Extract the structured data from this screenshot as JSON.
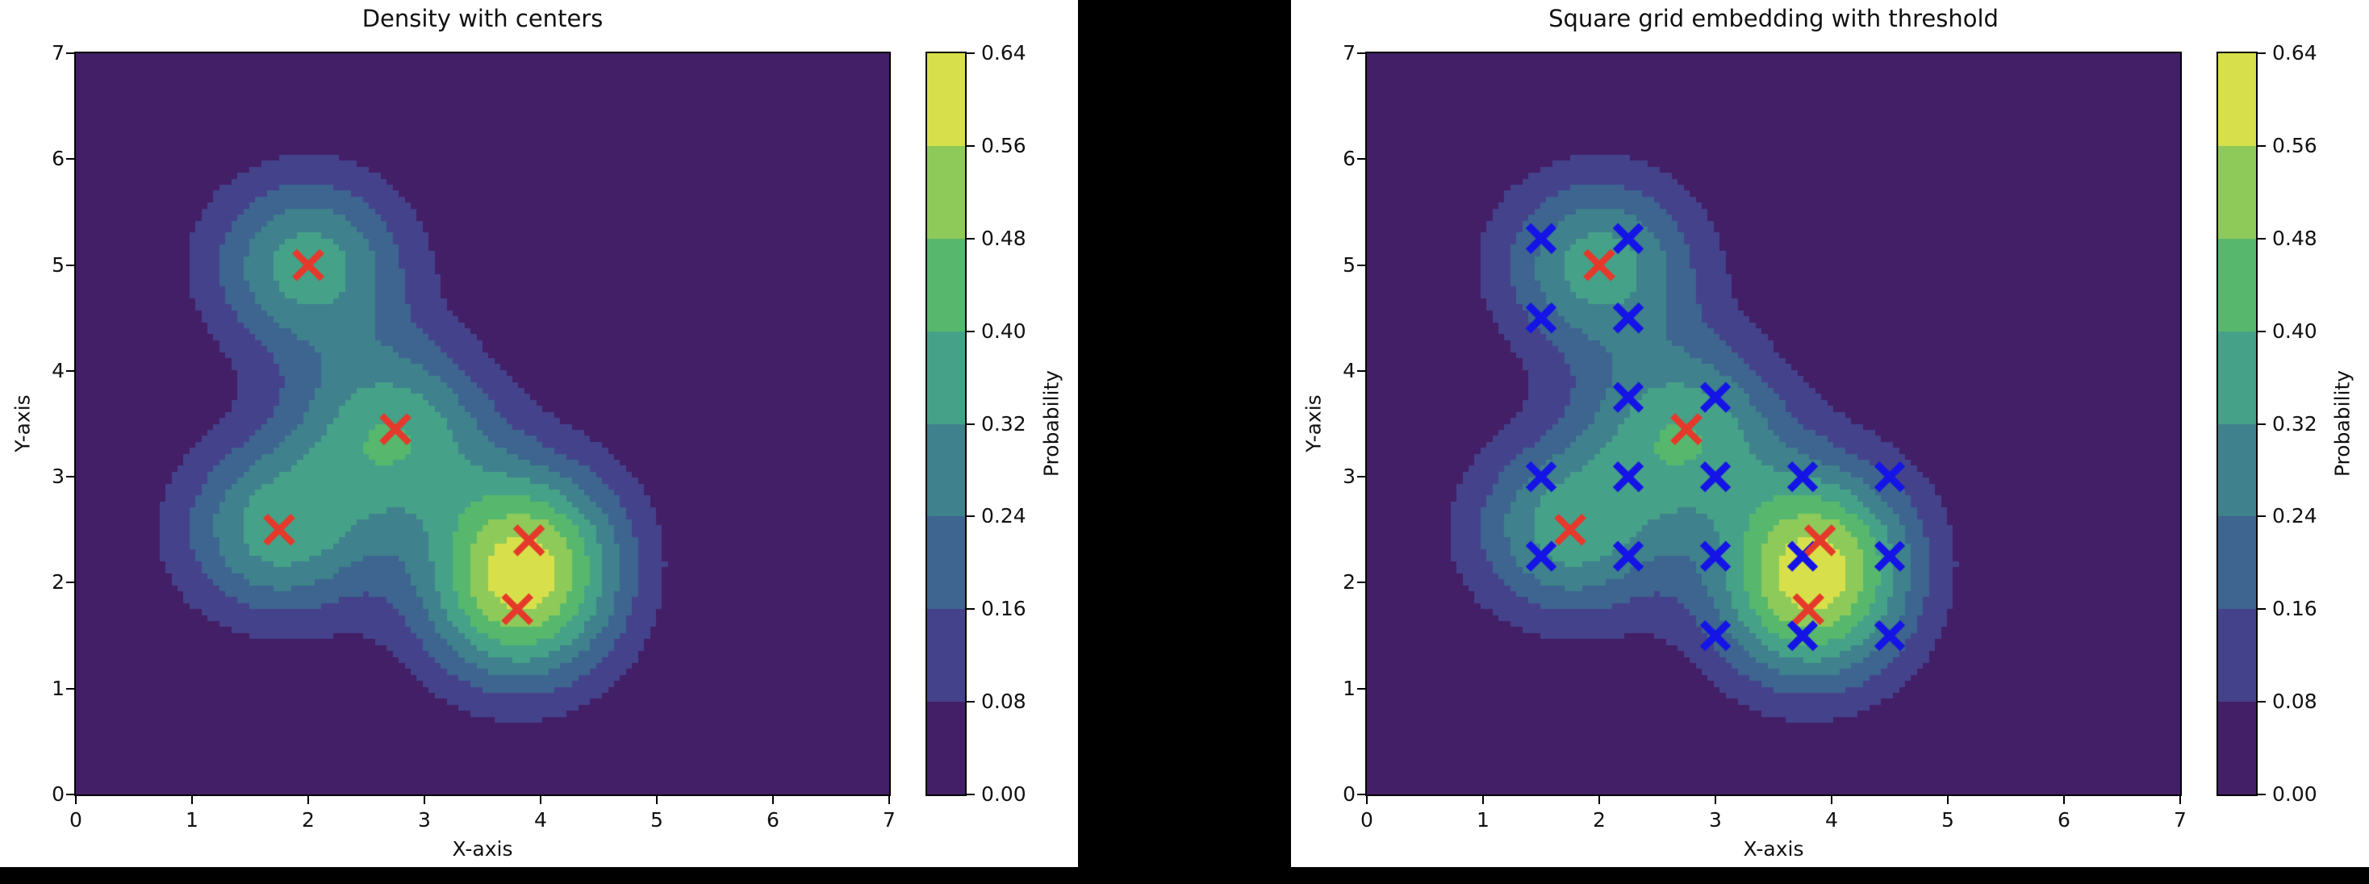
{
  "page": {
    "background": "#000000",
    "panel_background": "#ffffff",
    "text_color": "#111111"
  },
  "chart_data": [
    {
      "type": "contour",
      "title": "Density with centers",
      "xlabel": "X-axis",
      "ylabel": "Y-axis",
      "xlim": [
        0,
        7
      ],
      "ylim": [
        0,
        7
      ],
      "x_tick_labels": [
        "0",
        "1",
        "2",
        "3",
        "4",
        "5",
        "6",
        "7"
      ],
      "y_tick_labels": [
        "0",
        "1",
        "2",
        "3",
        "4",
        "5",
        "6",
        "7"
      ],
      "grid": false,
      "legend": "none",
      "levels": [
        0.0,
        0.08,
        0.16,
        0.24,
        0.32,
        0.4,
        0.48,
        0.56,
        0.64
      ],
      "colorbar": {
        "label": "Probability",
        "tick_labels": [
          "0.00",
          "0.08",
          "0.16",
          "0.24",
          "0.32",
          "0.40",
          "0.48",
          "0.56",
          "0.64"
        ],
        "band_colors": [
          "#421f66",
          "#45428c",
          "#3d6590",
          "#3f818c",
          "#46a189",
          "#57b86d",
          "#8eca59",
          "#d7e04a"
        ]
      },
      "density": {
        "kernel": "gaussian_mixture",
        "sigma": 0.6,
        "component_weight": 0.36,
        "centers": [
          [
            2.0,
            5.0
          ],
          [
            2.75,
            3.45
          ],
          [
            1.75,
            2.5
          ],
          [
            3.9,
            2.4
          ],
          [
            3.8,
            1.75
          ]
        ]
      },
      "markers": [
        {
          "name": "centers",
          "symbol": "x",
          "color": "#e5392b",
          "size": 34,
          "stroke": 8,
          "points": [
            [
              2.0,
              5.0
            ],
            [
              2.75,
              3.45
            ],
            [
              1.75,
              2.5
            ],
            [
              3.9,
              2.4
            ],
            [
              3.8,
              1.75
            ]
          ]
        }
      ]
    },
    {
      "type": "contour",
      "title": "Square grid embedding with threshold",
      "xlabel": "X-axis",
      "ylabel": "Y-axis",
      "xlim": [
        0,
        7
      ],
      "ylim": [
        0,
        7
      ],
      "x_tick_labels": [
        "0",
        "1",
        "2",
        "3",
        "4",
        "5",
        "6",
        "7"
      ],
      "y_tick_labels": [
        "0",
        "1",
        "2",
        "3",
        "4",
        "5",
        "6",
        "7"
      ],
      "grid": false,
      "legend": "none",
      "levels": [
        0.0,
        0.08,
        0.16,
        0.24,
        0.32,
        0.4,
        0.48,
        0.56,
        0.64
      ],
      "colorbar": {
        "label": "Probability",
        "tick_labels": [
          "0.00",
          "0.08",
          "0.16",
          "0.24",
          "0.32",
          "0.40",
          "0.48",
          "0.56",
          "0.64"
        ],
        "band_colors": [
          "#421f66",
          "#45428c",
          "#3d6590",
          "#3f818c",
          "#46a189",
          "#57b86d",
          "#8eca59",
          "#d7e04a"
        ]
      },
      "density": {
        "kernel": "gaussian_mixture",
        "sigma": 0.6,
        "component_weight": 0.36,
        "centers": [
          [
            2.0,
            5.0
          ],
          [
            2.75,
            3.45
          ],
          [
            1.75,
            2.5
          ],
          [
            3.9,
            2.4
          ],
          [
            3.8,
            1.75
          ]
        ]
      },
      "markers": [
        {
          "name": "grid-points-above-threshold",
          "symbol": "x",
          "color": "#1414e6",
          "size": 32,
          "stroke": 9,
          "points": [
            [
              1.5,
              5.25
            ],
            [
              2.25,
              5.25
            ],
            [
              1.5,
              4.5
            ],
            [
              2.25,
              4.5
            ],
            [
              2.25,
              3.75
            ],
            [
              3.0,
              3.75
            ],
            [
              1.5,
              3.0
            ],
            [
              2.25,
              3.0
            ],
            [
              3.0,
              3.0
            ],
            [
              3.75,
              3.0
            ],
            [
              4.5,
              3.0
            ],
            [
              1.5,
              2.25
            ],
            [
              2.25,
              2.25
            ],
            [
              3.0,
              2.25
            ],
            [
              3.75,
              2.25
            ],
            [
              4.5,
              2.25
            ],
            [
              3.0,
              1.5
            ],
            [
              3.75,
              1.5
            ],
            [
              4.5,
              1.5
            ]
          ]
        },
        {
          "name": "centers",
          "symbol": "x",
          "color": "#e5392b",
          "size": 34,
          "stroke": 8,
          "points": [
            [
              2.0,
              5.0
            ],
            [
              2.75,
              3.45
            ],
            [
              1.75,
              2.5
            ],
            [
              3.9,
              2.4
            ],
            [
              3.8,
              1.75
            ]
          ]
        }
      ]
    }
  ]
}
